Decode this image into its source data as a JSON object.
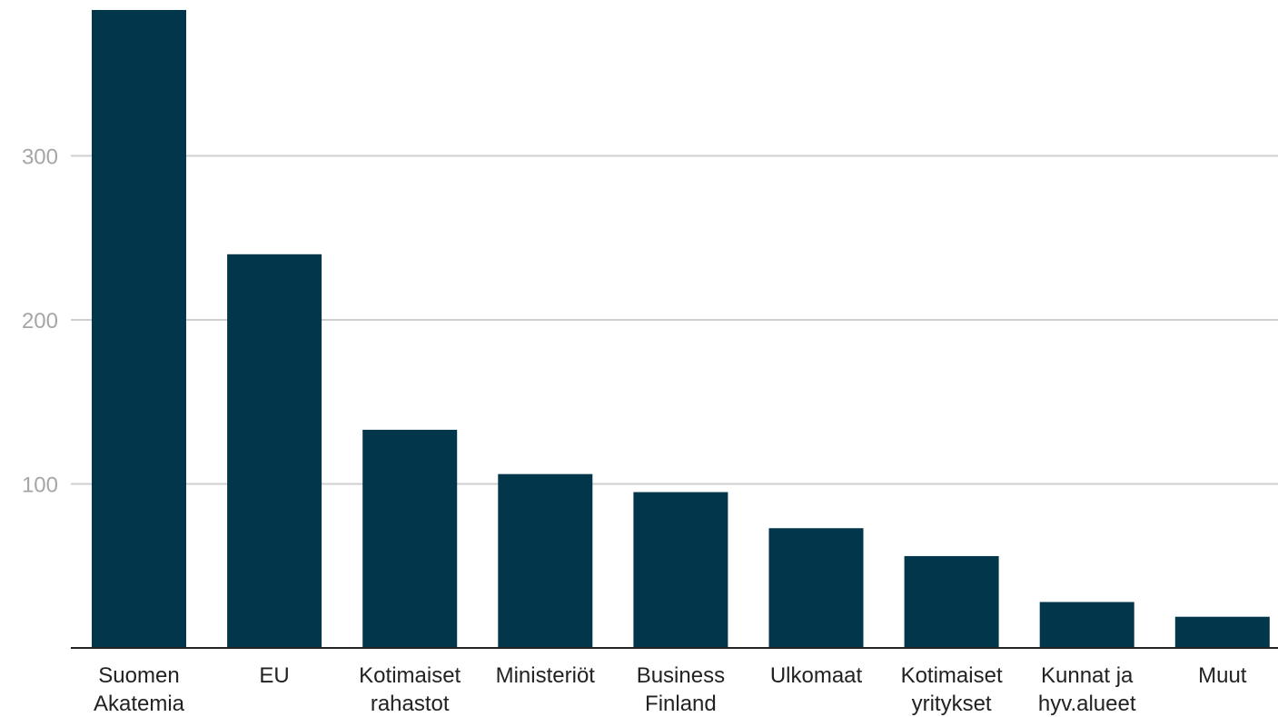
{
  "chart_data": {
    "type": "bar",
    "title": "",
    "xlabel": "",
    "ylabel": "",
    "categories": [
      [
        "Suomen",
        "Akatemia"
      ],
      [
        "EU"
      ],
      [
        "Kotimaiset",
        "rahastot"
      ],
      [
        "Ministeriöt"
      ],
      [
        "Business",
        "Finland"
      ],
      [
        "Ulkomaat"
      ],
      [
        "Kotimaiset",
        "yritykset"
      ],
      [
        "Kunnat ja",
        "hyv.alueet"
      ],
      [
        "Muut"
      ]
    ],
    "values": [
      389,
      240,
      133,
      106,
      95,
      73,
      56,
      28,
      19
    ],
    "ylim": [
      0,
      389
    ],
    "yticks": [
      100,
      200,
      300
    ],
    "grid": true,
    "bar_color": "#02364a",
    "gridline_color": "#cfcfcf",
    "axis_color": "#222222",
    "tick_label_color": "#a6a6a6",
    "category_label_color": "#222222"
  }
}
